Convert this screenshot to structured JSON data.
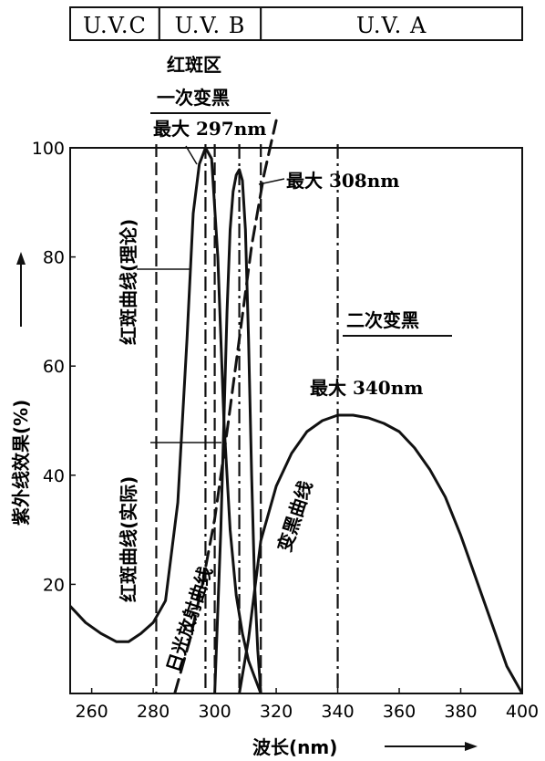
{
  "bands": [
    {
      "label": "U.V.C",
      "from": 250,
      "to": 282
    },
    {
      "label": "U.V. B",
      "from": 282,
      "to": 315
    },
    {
      "label": "U.V. A",
      "from": 315,
      "to": 400
    }
  ],
  "annotations": {
    "erythema_zone": "红斑区",
    "primary_tanning": "一次变黑",
    "max_297": "最大 297nm",
    "max_308": "最大 308nm",
    "secondary_tanning": "二次变黑",
    "max_340": "最大 340nm",
    "erythema_theory": "红斑曲线(理论)",
    "erythema_actual": "红斑曲线(实际)",
    "sunlight_curve": "日光放射曲线",
    "tanning_curve": "变黑曲线"
  },
  "chart_data": {
    "type": "line",
    "xlabel": "波长(nm)",
    "ylabel": "紫外线效果(%)",
    "xlim": [
      253,
      400
    ],
    "ylim": [
      0,
      100
    ],
    "xticks": [
      260,
      280,
      300,
      320,
      340,
      360,
      380,
      400
    ],
    "yticks": [
      20,
      40,
      60,
      80,
      100
    ],
    "series": [
      {
        "name": "红斑曲线(实际)",
        "style": "solid",
        "x": [
          253,
          258,
          263,
          268,
          272,
          276,
          280,
          284,
          288,
          291,
          293,
          295,
          297,
          299,
          301,
          303,
          305,
          307,
          309,
          311,
          313,
          315
        ],
        "y": [
          16,
          13,
          11,
          9.5,
          9.5,
          11,
          13,
          17,
          35,
          65,
          88,
          97,
          100,
          98,
          80,
          50,
          30,
          18,
          11,
          6,
          3,
          0
        ]
      },
      {
        "name": "红斑曲线(理论)",
        "style": "solid",
        "x": [
          300,
          302,
          304,
          305,
          306,
          307,
          308,
          309,
          310,
          311,
          312,
          313,
          314,
          315
        ],
        "y": [
          0,
          30,
          70,
          85,
          92,
          95,
          96,
          94,
          85,
          65,
          40,
          20,
          8,
          0
        ]
      },
      {
        "name": "变黑曲线",
        "style": "solid",
        "x": [
          308,
          311,
          315,
          320,
          325,
          330,
          335,
          340,
          345,
          350,
          355,
          360,
          365,
          370,
          375,
          380,
          385,
          390,
          395,
          400
        ],
        "y": [
          0,
          10,
          28,
          38,
          44,
          48,
          50,
          51,
          51,
          50.5,
          49.5,
          48,
          45,
          41,
          36,
          29,
          21,
          13,
          5,
          0
        ]
      },
      {
        "name": "日光放射曲线",
        "style": "dashed",
        "x": [
          287,
          292,
          296,
          300,
          304,
          308,
          312,
          316,
          318,
          320
        ],
        "y": [
          0,
          10,
          20,
          32,
          48,
          65,
          82,
          95,
          100,
          105
        ]
      }
    ],
    "reference_lines": [
      {
        "x": 281,
        "style": "dashed"
      },
      {
        "x": 297,
        "style": "dashdot"
      },
      {
        "x": 300,
        "style": "dashed"
      },
      {
        "x": 308,
        "style": "dashdot"
      },
      {
        "x": 315,
        "style": "dashed"
      },
      {
        "x": 340,
        "style": "dashdot"
      }
    ]
  }
}
